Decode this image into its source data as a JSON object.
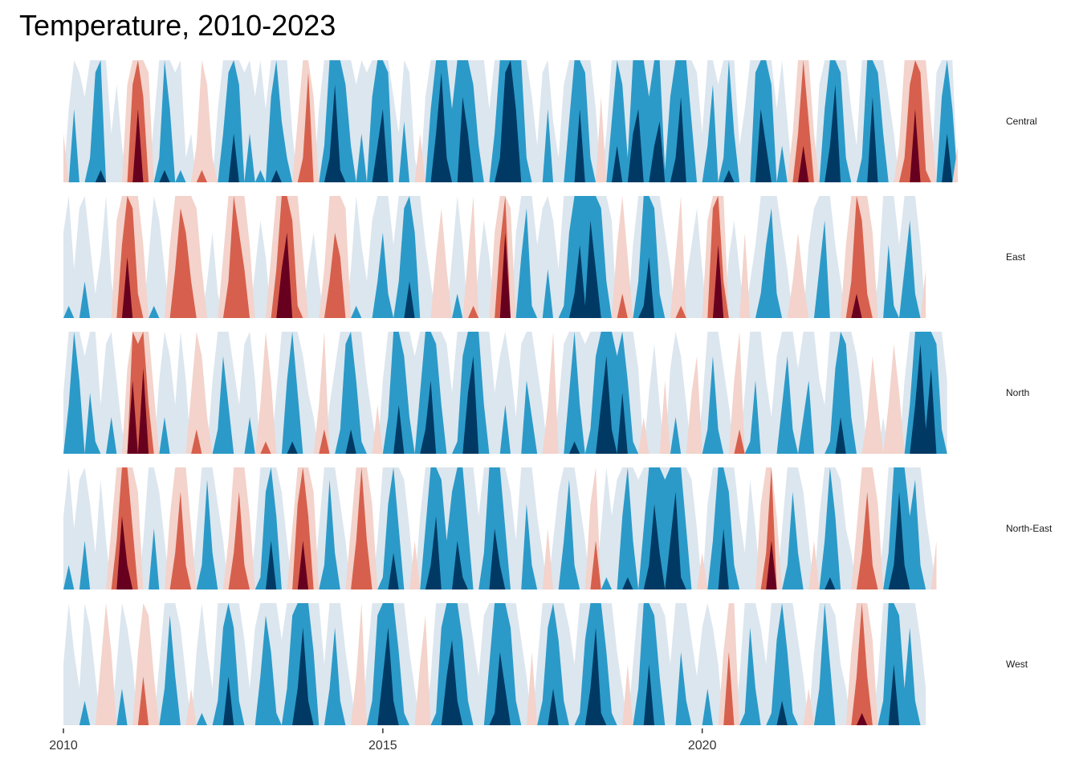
{
  "chart_data": {
    "type": "horizon",
    "title": "Temperature, 2010-2023",
    "xlim": [
      2010,
      2023.9
    ],
    "x_ticks": [
      2010,
      2015,
      2020
    ],
    "x_tick_labels": [
      "2010",
      "2015",
      "2020"
    ],
    "band_colors": {
      "positive": [
        "#f3d3cb",
        "#d6604d",
        "#67001f"
      ],
      "negative": [
        "#dce6ef",
        "#2b9ac8",
        "#003a64"
      ]
    },
    "series": [
      {
        "name": "Central",
        "start_year": 2010,
        "step": "month",
        "values": [
          0.4,
          -0.6,
          -1.6,
          -0.9,
          -0.7,
          -1.2,
          -1.9,
          -2.1,
          -1.0,
          -0.4,
          -0.8,
          -0.3,
          0.8,
          1.8,
          2.6,
          1.7,
          0.9,
          -0.5,
          -1.2,
          -2.1,
          -1.6,
          -0.9,
          -1.1,
          -0.2,
          -0.4,
          0.3,
          1.1,
          0.8,
          0.2,
          -0.6,
          -1.4,
          -1.9,
          -2.4,
          -1.8,
          -0.9,
          -1.4,
          -0.7,
          -1.1,
          -0.6,
          -1.7,
          -2.1,
          -1.5,
          -1.2,
          -0.4,
          0.5,
          1.2,
          1.9,
          0.7,
          -0.6,
          -1.3,
          -2.2,
          -2.8,
          -2.1,
          -1.8,
          -1.3,
          -0.8,
          -1.4,
          -0.9,
          -1.7,
          -2.3,
          -2.6,
          -1.9,
          -0.7,
          -0.4,
          -1.5,
          -0.9,
          -0.2,
          0.4,
          -0.7,
          -1.6,
          -2.4,
          -2.9,
          -2.2,
          -1.6,
          -2.0,
          -2.7,
          -2.4,
          -1.8,
          -1.3,
          -1.0,
          -0.6,
          -1.4,
          -2.2,
          -2.9,
          -3.2,
          -2.6,
          -2.0,
          -1.2,
          -0.7,
          -0.3,
          -0.9,
          -1.6,
          -0.5,
          -0.2,
          -0.8,
          -1.5,
          -2.0,
          -2.6,
          -1.9,
          -1.2,
          -0.6,
          0.7,
          -0.4,
          -1.5,
          -2.3,
          -1.8,
          -1.2,
          -2.4,
          -2.6,
          -2.0,
          -1.7,
          -2.3,
          -2.5,
          -1.1,
          -1.7,
          -2.2,
          -2.7,
          -2.0,
          -1.5,
          -0.9,
          -0.4,
          -1.3,
          -1.8,
          -0.8,
          -1.2,
          -2.1,
          -1.4,
          -0.3,
          -0.6,
          -1.0,
          -1.9,
          -2.6,
          -2.3,
          -1.8,
          -0.6,
          -1.3,
          -0.5,
          0.4,
          1.4,
          2.3,
          1.5,
          0.4,
          -0.8,
          -1.6,
          -2.3,
          -2.8,
          -1.9,
          -1.2,
          -0.6,
          -0.3,
          -1.2,
          -2.0,
          -2.7,
          -1.9,
          -1.4,
          -0.7,
          -0.4,
          0.3,
          1.2,
          1.8,
          2.6,
          1.9,
          1.1,
          0.5,
          -0.9,
          -1.7,
          -2.4,
          -1.6,
          0.3
        ]
      },
      {
        "name": "East",
        "start_year": 2010,
        "step": "month",
        "values": [
          -0.7,
          -1.1,
          -0.4,
          -0.9,
          -1.3,
          -0.6,
          -0.2,
          -0.5,
          -1.0,
          -0.3,
          0.8,
          1.6,
          2.5,
          1.9,
          1.2,
          0.6,
          -0.5,
          -1.1,
          -0.8,
          -0.4,
          0.6,
          1.4,
          1.9,
          1.7,
          1.3,
          0.9,
          0.4,
          -0.3,
          -0.7,
          -0.2,
          0.5,
          1.3,
          2.0,
          1.7,
          1.4,
          0.6,
          -0.4,
          -0.8,
          -0.5,
          0.5,
          1.4,
          2.4,
          2.7,
          1.8,
          1.1,
          0.5,
          -0.4,
          -0.7,
          -0.3,
          0.4,
          1.3,
          1.7,
          1.5,
          0.9,
          -0.4,
          -1.1,
          -0.6,
          -0.3,
          -0.8,
          -1.3,
          -1.7,
          -1.2,
          -0.6,
          -1.3,
          -1.9,
          -2.3,
          -1.7,
          -1.0,
          -0.6,
          -0.3,
          0.5,
          0.9,
          0.4,
          -0.5,
          -1.2,
          -0.6,
          0.5,
          1.1,
          -0.4,
          -0.8,
          -0.5,
          0.7,
          1.6,
          2.7,
          0.9,
          -0.7,
          -1.5,
          -1.9,
          -1.1,
          -0.6,
          -0.9,
          -1.4,
          -0.8,
          -0.4,
          -1.1,
          -1.7,
          -2.2,
          -2.6,
          -2.1,
          -2.8,
          -2.4,
          -1.9,
          -1.3,
          -0.8,
          0.6,
          1.2,
          0.5,
          -0.6,
          -1.3,
          -2.1,
          -2.5,
          -1.9,
          -1.2,
          -0.7,
          -0.4,
          0.5,
          1.1,
          -0.3,
          -0.6,
          -0.9,
          -0.4,
          0.8,
          1.9,
          2.6,
          1.3,
          -0.5,
          -0.8,
          -0.4,
          0.7,
          -0.3,
          -0.6,
          -1.2,
          -1.6,
          -1.9,
          -1.2,
          -0.7,
          -0.4,
          0.3,
          0.7,
          0.3,
          -0.6,
          -0.9,
          -1.4,
          -1.8,
          -1.0,
          -0.6,
          -0.3,
          0.6,
          1.3,
          2.2,
          1.8,
          1.2,
          0.7,
          -0.3,
          -1.0,
          -1.6,
          -1.1,
          -0.6,
          -1.4,
          -1.8,
          -1.2,
          -0.6,
          0.4
        ]
      },
      {
        "name": "North",
        "start_year": 2010,
        "step": "month",
        "values": [
          -0.5,
          -1.4,
          -2.0,
          -1.6,
          -0.8,
          -1.5,
          -1.1,
          -0.4,
          -0.9,
          -1.3,
          -0.6,
          -0.2,
          0.7,
          2.6,
          1.9,
          2.7,
          1.4,
          0.5,
          -0.6,
          -1.3,
          -0.8,
          -0.4,
          -1.0,
          -0.6,
          0.5,
          1.2,
          0.8,
          0.3,
          -0.6,
          -1.2,
          -1.8,
          -1.4,
          -0.7,
          -0.4,
          -0.9,
          -1.3,
          -0.6,
          0.4,
          1.1,
          0.6,
          -0.5,
          -1.0,
          -1.6,
          -2.1,
          -1.5,
          -0.8,
          -0.5,
          -0.3,
          0.4,
          1.2,
          -0.4,
          -0.7,
          -1.2,
          -1.9,
          -2.2,
          -1.6,
          -1.1,
          -0.6,
          -0.3,
          0.4,
          -0.6,
          -1.3,
          -2.0,
          -2.4,
          -1.8,
          -1.3,
          -0.8,
          -1.5,
          -2.2,
          -2.6,
          -1.9,
          -1.4,
          -0.9,
          -0.5,
          -1.1,
          -1.8,
          -2.5,
          -2.8,
          -2.0,
          -1.4,
          -1.0,
          -0.5,
          -0.8,
          -1.4,
          -0.7,
          -0.3,
          -0.9,
          -1.6,
          -1.3,
          -0.7,
          -0.4,
          0.4,
          1.0,
          -0.4,
          -0.9,
          -1.5,
          -2.1,
          -1.4,
          -0.9,
          -1.2,
          -1.8,
          -2.4,
          -2.8,
          -2.2,
          -1.8,
          -2.5,
          -1.6,
          -1.1,
          -0.7,
          0.3,
          -0.5,
          -0.9,
          -0.4,
          0.6,
          -0.7,
          -1.3,
          -0.8,
          -0.4,
          0.5,
          0.8,
          -0.4,
          -1.2,
          -1.8,
          -1.2,
          -0.7,
          -0.4,
          0.6,
          1.2,
          -0.5,
          -1.1,
          -1.6,
          -1.0,
          -0.6,
          -0.3,
          -0.8,
          -1.4,
          -1.8,
          -1.2,
          -0.7,
          -1.3,
          -1.6,
          -1.0,
          -0.6,
          -0.4,
          -1.1,
          -1.7,
          -2.3,
          -1.9,
          -1.3,
          -0.8,
          -0.5,
          0.3,
          0.8,
          0.4,
          -0.3,
          0.4,
          0.9,
          0.5,
          -0.6,
          -1.4,
          -2.4,
          -2.9,
          -2.2,
          -2.7,
          -1.9,
          -1.2,
          -0.6
        ]
      },
      {
        "name": "North-East",
        "start_year": 2010,
        "step": "month",
        "values": [
          -0.6,
          -1.2,
          -0.5,
          -0.9,
          -1.4,
          -0.7,
          -0.3,
          -0.9,
          -0.4,
          0.5,
          1.4,
          2.6,
          2.2,
          1.5,
          0.8,
          -0.4,
          -1.0,
          -1.5,
          -0.8,
          -0.4,
          0.6,
          1.3,
          1.8,
          1.2,
          0.5,
          -0.5,
          -1.2,
          -1.9,
          -1.3,
          -0.7,
          -0.4,
          0.4,
          1.3,
          1.8,
          1.2,
          0.6,
          -0.4,
          -1.1,
          -1.8,
          -2.4,
          -1.6,
          -0.8,
          -0.4,
          0.5,
          1.7,
          2.4,
          1.6,
          0.8,
          -0.5,
          -1.2,
          -1.9,
          -1.3,
          -0.7,
          -0.4,
          0.5,
          1.4,
          2.0,
          1.4,
          0.7,
          -0.4,
          -1.1,
          -1.7,
          -2.3,
          -1.5,
          -0.9,
          -0.5,
          0.4,
          -0.6,
          -1.5,
          -2.2,
          -2.6,
          -1.9,
          -1.4,
          -1.8,
          -2.4,
          -2.1,
          -1.5,
          -1.0,
          -0.6,
          -1.3,
          -2.0,
          -2.5,
          -2.2,
          -1.5,
          -0.8,
          -0.4,
          -1.0,
          -1.7,
          -1.2,
          -0.6,
          -0.3,
          0.5,
          -0.4,
          -0.8,
          -1.4,
          -1.9,
          -1.2,
          -0.7,
          -0.4,
          0.7,
          1.4,
          -0.5,
          -1.1,
          -0.6,
          -0.9,
          -1.6,
          -2.1,
          -1.4,
          -0.9,
          -1.5,
          -2.2,
          -2.7,
          -2.3,
          -1.9,
          -2.4,
          -2.8,
          -2.1,
          -1.5,
          -0.9,
          -0.5,
          0.3,
          -0.7,
          -1.4,
          -2.0,
          -2.5,
          -1.8,
          -1.2,
          -0.6,
          -0.3,
          -0.9,
          -0.5,
          0.7,
          1.3,
          2.4,
          0.6,
          -0.5,
          -1.2,
          -1.8,
          -1.3,
          -0.8,
          -0.4,
          0.4,
          -0.6,
          -1.4,
          -2.1,
          -1.6,
          -0.9,
          -0.5,
          -0.3,
          0.5,
          1.3,
          1.8,
          1.2,
          0.7,
          -0.4,
          -1.3,
          -2.2,
          -2.8,
          -2.2,
          -1.6,
          -1.9,
          -1.2,
          -0.6,
          -0.3,
          0.4
        ]
      },
      {
        "name": "West",
        "start_year": 2010,
        "step": "month",
        "values": [
          -0.5,
          -1.0,
          -0.6,
          -0.3,
          -1.2,
          -0.8,
          -0.4,
          0.5,
          1.0,
          0.6,
          -0.5,
          -1.3,
          -0.8,
          -0.5,
          0.6,
          1.4,
          0.9,
          0.4,
          -0.5,
          -1.3,
          -1.9,
          -1.4,
          -0.8,
          -0.4,
          0.3,
          -0.6,
          -1.1,
          -0.6,
          -0.3,
          -1.2,
          -1.8,
          -2.4,
          -1.8,
          -1.2,
          -0.7,
          -0.3,
          -0.8,
          -1.4,
          -1.9,
          -1.6,
          -1.1,
          -0.7,
          -1.3,
          -1.9,
          -2.3,
          -2.8,
          -2.2,
          -1.6,
          -1.0,
          -0.5,
          -1.3,
          -1.8,
          -1.2,
          -0.6,
          -0.3,
          0.4,
          1.0,
          -0.5,
          -1.2,
          -1.9,
          -2.4,
          -2.8,
          -2.2,
          -1.6,
          -1.1,
          -0.6,
          -0.3,
          0.5,
          0.9,
          -0.4,
          -1.1,
          -1.8,
          -2.4,
          -2.7,
          -2.2,
          -1.7,
          -1.2,
          -0.7,
          -0.4,
          -0.9,
          -1.5,
          -2.1,
          -2.6,
          -2.3,
          -1.8,
          -1.2,
          -0.7,
          -0.4,
          0.6,
          -0.5,
          -1.2,
          -1.8,
          -2.3,
          -1.7,
          -1.2,
          -0.8,
          -0.5,
          -1.1,
          -1.7,
          -2.3,
          -2.8,
          -2.1,
          -1.6,
          -1.1,
          -0.6,
          -0.3,
          0.5,
          -0.5,
          -1.3,
          -2.0,
          -2.5,
          -1.9,
          -1.4,
          -0.9,
          -0.5,
          -1.0,
          -1.6,
          -1.2,
          -0.7,
          -0.4,
          -0.8,
          -1.3,
          -0.8,
          -0.5,
          0.6,
          1.6,
          1.0,
          -0.4,
          -1.1,
          -1.8,
          -1.3,
          -0.8,
          -0.5,
          -1.1,
          -1.7,
          -2.2,
          -1.6,
          -1.1,
          -0.7,
          -0.4,
          0.3,
          -0.6,
          -1.3,
          -2.0,
          -1.5,
          -0.9,
          -0.5,
          -0.3,
          0.6,
          1.4,
          2.1,
          1.4,
          0.7,
          -0.4,
          -1.2,
          -2.0,
          -2.5,
          -1.9,
          -1.3,
          -1.8,
          -1.2,
          -0.7,
          -0.3
        ]
      }
    ]
  }
}
